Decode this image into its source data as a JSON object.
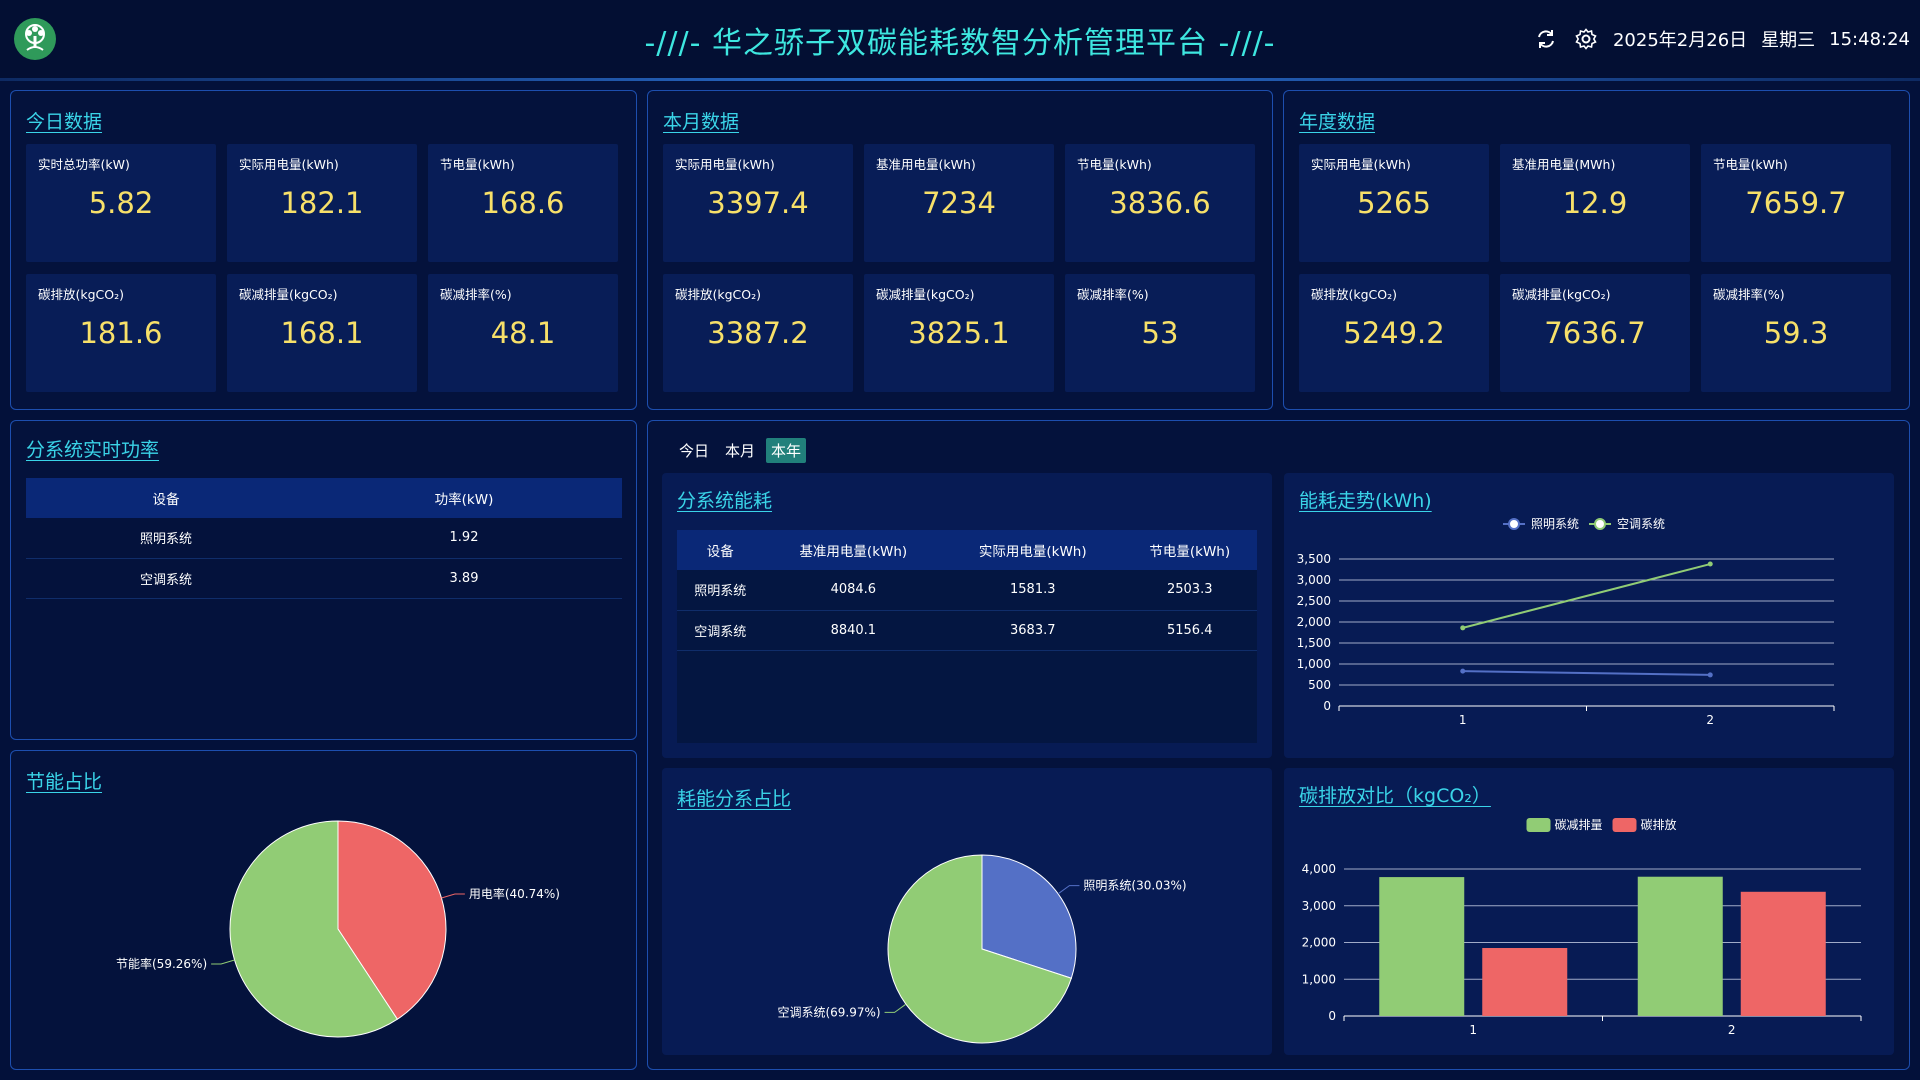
{
  "header": {
    "title": "-///- 华之骄子双碳能耗数智分析管理平台 -///-",
    "date": "2025年2月26日",
    "weekday": "星期三",
    "time": "15:48:24",
    "icons": [
      "refresh-icon",
      "gear-icon",
      "tree-logo"
    ]
  },
  "today": {
    "title": "今日数据",
    "stats": [
      {
        "label": "实时总功率(kW)",
        "value": "5.82"
      },
      {
        "label": "实际用电量(kWh)",
        "value": "182.1"
      },
      {
        "label": "节电量(kWh)",
        "value": "168.6"
      },
      {
        "label": "碳排放(kgCO₂)",
        "value": "181.6"
      },
      {
        "label": "碳减排量(kgCO₂)",
        "value": "168.1"
      },
      {
        "label": "碳减排率(%)",
        "value": "48.1"
      }
    ]
  },
  "month": {
    "title": "本月数据",
    "stats": [
      {
        "label": "实际用电量(kWh)",
        "value": "3397.4"
      },
      {
        "label": "基准用电量(kWh)",
        "value": "7234"
      },
      {
        "label": "节电量(kWh)",
        "value": "3836.6"
      },
      {
        "label": "碳排放(kgCO₂)",
        "value": "3387.2"
      },
      {
        "label": "碳减排量(kgCO₂)",
        "value": "3825.1"
      },
      {
        "label": "碳减排率(%)",
        "value": "53"
      }
    ]
  },
  "year": {
    "title": "年度数据",
    "stats": [
      {
        "label": "实际用电量(kWh)",
        "value": "5265"
      },
      {
        "label": "基准用电量(MWh)",
        "value": "12.9"
      },
      {
        "label": "节电量(kWh)",
        "value": "7659.7"
      },
      {
        "label": "碳排放(kgCO₂)",
        "value": "5249.2"
      },
      {
        "label": "碳减排量(kgCO₂)",
        "value": "7636.7"
      },
      {
        "label": "碳减排率(%)",
        "value": "59.3"
      }
    ]
  },
  "realtime_power": {
    "title": "分系统实时功率",
    "headers": [
      "设备",
      "功率(kW)"
    ],
    "rows": [
      [
        "照明系统",
        "1.92"
      ],
      [
        "空调系统",
        "3.89"
      ]
    ]
  },
  "tabs": {
    "items": [
      "今日",
      "本月",
      "本年"
    ],
    "active": "本年"
  },
  "subsystem_energy": {
    "title": "分系统能耗",
    "headers": [
      "设备",
      "基准用电量(kWh)",
      "实际用电量(kWh)",
      "节电量(kWh)"
    ],
    "rows": [
      [
        "照明系统",
        "4084.6",
        "1581.3",
        "2503.3"
      ],
      [
        "空调系统",
        "8840.1",
        "3683.7",
        "5156.4"
      ]
    ]
  },
  "chart_data": [
    {
      "id": "trend",
      "type": "line",
      "title": "能耗走势(kWh)",
      "categories": [
        "1",
        "2"
      ],
      "series": [
        {
          "name": "照明系统",
          "values": [
            830,
            740
          ],
          "color": "#5470c6"
        },
        {
          "name": "空调系统",
          "values": [
            1860,
            3380
          ],
          "color": "#91cc75"
        }
      ],
      "ylim": [
        0,
        3500
      ],
      "yticks": [
        "0",
        "500",
        "1,000",
        "1,500",
        "2,000",
        "2,500",
        "3,000",
        "3,500"
      ],
      "legend": "top-center",
      "grid": true
    },
    {
      "id": "saving",
      "type": "pie",
      "title": "节能占比",
      "slices": [
        {
          "name": "用电率",
          "value": 40.74,
          "label": "用电率(40.74%)",
          "color": "#ee6666"
        },
        {
          "name": "节能率",
          "value": 59.26,
          "label": "节能率(59.26%)",
          "color": "#91cc75"
        }
      ]
    },
    {
      "id": "share",
      "type": "pie",
      "title": "耗能分系占比",
      "slices": [
        {
          "name": "照明系统",
          "value": 30.03,
          "label": "照明系统(30.03%)",
          "color": "#5470c6"
        },
        {
          "name": "空调系统",
          "value": 69.97,
          "label": "空调系统(69.97%)",
          "color": "#91cc75"
        }
      ]
    },
    {
      "id": "carbon",
      "type": "bar",
      "title": "碳排放对比（kgCO₂）",
      "categories": [
        "1",
        "2"
      ],
      "series": [
        {
          "name": "碳减排量",
          "values": [
            3780,
            3790
          ],
          "color": "#91cc75"
        },
        {
          "name": "碳排放",
          "values": [
            1850,
            3380
          ],
          "color": "#ee6666"
        }
      ],
      "ylim": [
        0,
        4000
      ],
      "yticks": [
        "0",
        "1,000",
        "2,000",
        "3,000",
        "4,000"
      ],
      "legend": "top-center",
      "grid": true
    }
  ]
}
